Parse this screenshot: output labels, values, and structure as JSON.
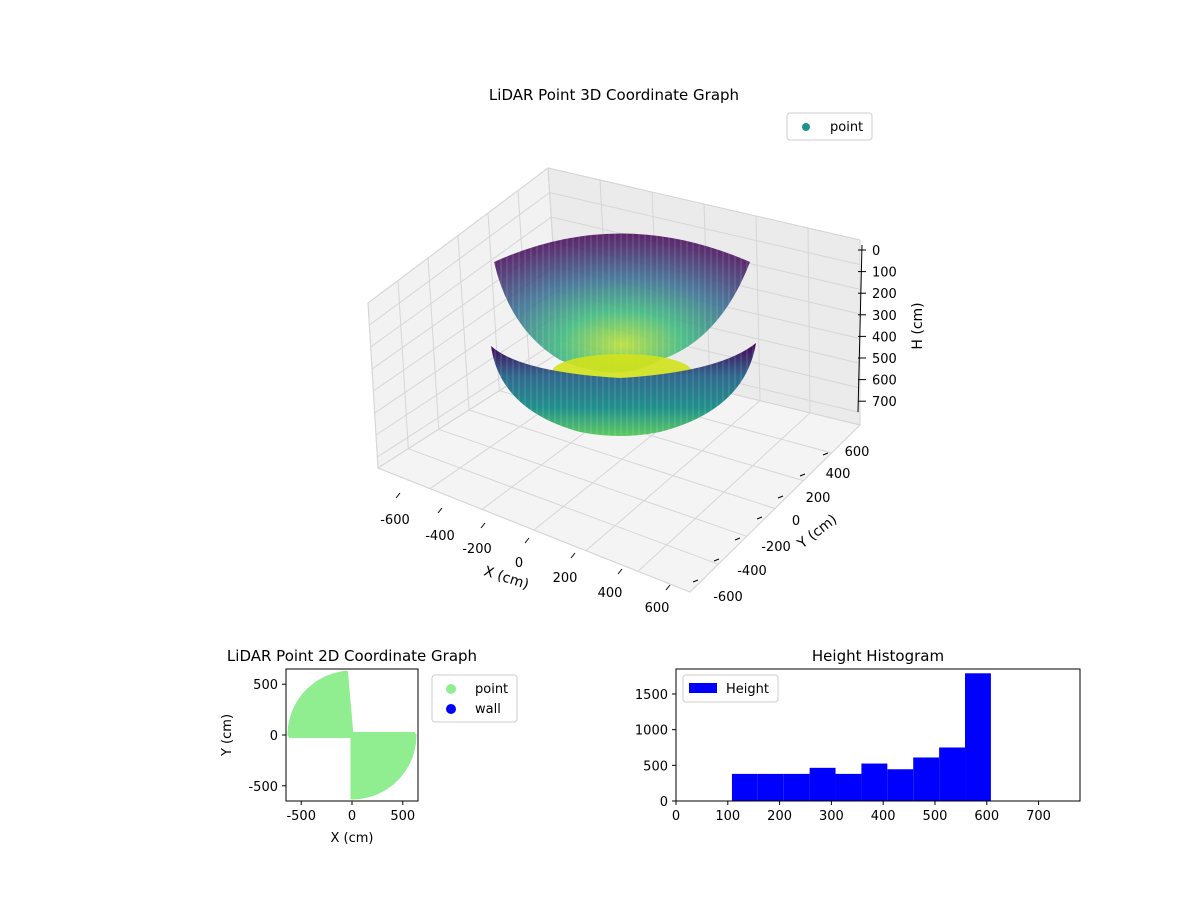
{
  "figure": {
    "background": "#ffffff"
  },
  "chart_data": [
    {
      "type": "scatter",
      "projection": "3d",
      "title": "LiDAR Point 3D Coordinate Graph",
      "xlabel": "X (cm)",
      "ylabel": "Y (cm)",
      "zlabel": "H (cm)",
      "xlim": [
        -650,
        650
      ],
      "ylim": [
        -650,
        650
      ],
      "zlim": [
        750,
        0
      ],
      "z_inverted": true,
      "xticks": [
        "-600",
        "-400",
        "-200",
        "0",
        "200",
        "400",
        "600"
      ],
      "yticks": [
        "-600",
        "-400",
        "-200",
        "0",
        "200",
        "400",
        "600"
      ],
      "zticks": [
        "0",
        "100",
        "200",
        "300",
        "400",
        "500",
        "600",
        "700"
      ],
      "grid": true,
      "colormap": "viridis",
      "legend": {
        "placement": "top-right",
        "entries": [
          {
            "label": "point",
            "color": "#21918c"
          }
        ]
      },
      "series": [
        {
          "name": "point",
          "shape": "two half-bowls of points",
          "max_radius": 620,
          "height_range": [
            110,
            610
          ]
        }
      ]
    },
    {
      "type": "scatter",
      "title": "LiDAR Point 2D Coordinate Graph",
      "xlabel": "X (cm)",
      "ylabel": "Y (cm)",
      "xlim": [
        -650,
        650
      ],
      "ylim": [
        -650,
        650
      ],
      "xticks": [
        "-500",
        "0",
        "500"
      ],
      "yticks": [
        "-500",
        "0",
        "500"
      ],
      "legend": {
        "placement": "outside-right",
        "entries": [
          {
            "label": "point",
            "color": "#90ee90"
          },
          {
            "label": "wall",
            "color": "#0000ff"
          }
        ]
      },
      "series": [
        {
          "name": "point",
          "color": "#90ee90",
          "radius": 620,
          "sectors_deg": [
            [
              95,
              180
            ],
            [
              270,
              360
            ]
          ],
          "strip_halfwidth": 30
        },
        {
          "name": "wall",
          "color": "#0000ff",
          "values": []
        }
      ]
    },
    {
      "type": "bar",
      "subtype": "histogram",
      "title": "Height Histogram",
      "xlim": [
        0,
        780
      ],
      "ylim": [
        0,
        1850
      ],
      "xticks": [
        "0",
        "100",
        "200",
        "300",
        "400",
        "500",
        "600",
        "700"
      ],
      "yticks": [
        "0",
        "500",
        "1000",
        "1500"
      ],
      "color": "#0000ff",
      "legend": {
        "placement": "top-left",
        "entries": [
          {
            "label": "Height",
            "color": "#0000ff"
          }
        ]
      },
      "bins": [
        {
          "x0": 108,
          "x1": 158,
          "value": 380
        },
        {
          "x0": 158,
          "x1": 208,
          "value": 380
        },
        {
          "x0": 208,
          "x1": 258,
          "value": 380
        },
        {
          "x0": 258,
          "x1": 308,
          "value": 465
        },
        {
          "x0": 308,
          "x1": 358,
          "value": 380
        },
        {
          "x0": 358,
          "x1": 408,
          "value": 525
        },
        {
          "x0": 408,
          "x1": 458,
          "value": 445
        },
        {
          "x0": 458,
          "x1": 508,
          "value": 610
        },
        {
          "x0": 508,
          "x1": 558,
          "value": 750
        },
        {
          "x0": 558,
          "x1": 608,
          "value": 1790
        }
      ]
    }
  ]
}
